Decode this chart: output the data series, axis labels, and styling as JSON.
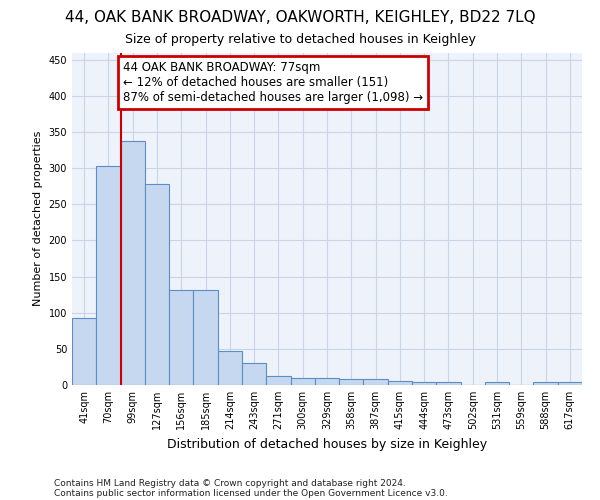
{
  "title": "44, OAK BANK BROADWAY, OAKWORTH, KEIGHLEY, BD22 7LQ",
  "subtitle": "Size of property relative to detached houses in Keighley",
  "xlabel": "Distribution of detached houses by size in Keighley",
  "ylabel": "Number of detached properties",
  "footer1": "Contains HM Land Registry data © Crown copyright and database right 2024.",
  "footer2": "Contains public sector information licensed under the Open Government Licence v3.0.",
  "categories": [
    "41sqm",
    "70sqm",
    "99sqm",
    "127sqm",
    "156sqm",
    "185sqm",
    "214sqm",
    "243sqm",
    "271sqm",
    "300sqm",
    "329sqm",
    "358sqm",
    "387sqm",
    "415sqm",
    "444sqm",
    "473sqm",
    "502sqm",
    "531sqm",
    "559sqm",
    "588sqm",
    "617sqm"
  ],
  "values": [
    93,
    303,
    338,
    278,
    131,
    131,
    47,
    31,
    13,
    10,
    10,
    8,
    8,
    5,
    4,
    4,
    0,
    4,
    0,
    4,
    4
  ],
  "bar_color": "#c5d8ef",
  "bar_edge_color": "#5b8ec4",
  "grid_color": "#c8d4e8",
  "annotation_line1": "44 OAK BANK BROADWAY: 77sqm",
  "annotation_line2": "← 12% of detached houses are smaller (151)",
  "annotation_line3": "87% of semi-detached houses are larger (1,098) →",
  "annotation_box_color": "#cc0000",
  "red_line_x": 1.5,
  "ylim": [
    0,
    460
  ],
  "yticks": [
    0,
    50,
    100,
    150,
    200,
    250,
    300,
    350,
    400,
    450
  ],
  "background_color": "#eef2fa",
  "title_fontsize": 11,
  "subtitle_fontsize": 9,
  "ylabel_fontsize": 8,
  "xlabel_fontsize": 9,
  "tick_fontsize": 7,
  "annotation_fontsize": 8.5,
  "footer_fontsize": 6.5
}
